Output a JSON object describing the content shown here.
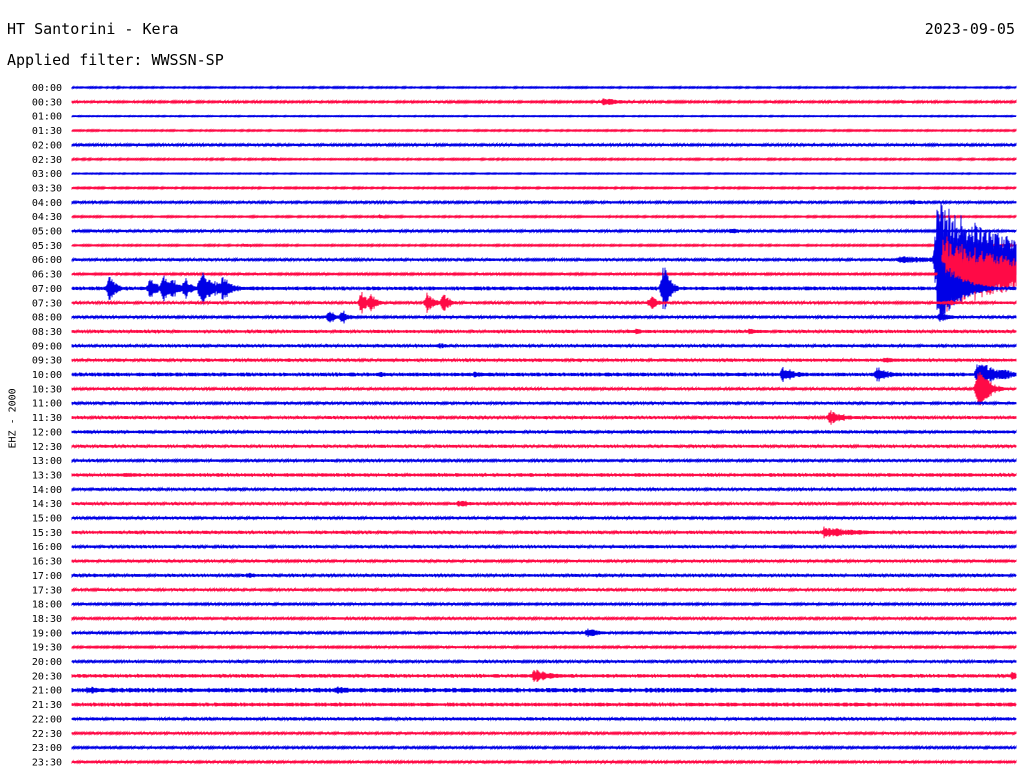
{
  "header": {
    "station": "HT Santorini - Kera",
    "date": "2023-09-05",
    "filter_prefix": "Applied filter:",
    "filter_name": "WWSSN-SP",
    "channel": "EHZ - 2000"
  },
  "colors": {
    "even_trace": "#0000e6",
    "odd_trace": "#ff0a46",
    "tick_label": "#000000"
  },
  "chart_data": {
    "type": "line",
    "title": "HT Santorini - Kera",
    "subtitle": "Applied filter: WWSSN-SP",
    "ylabel": "EHZ - 2000",
    "xlabel": "",
    "rows": [
      "00:00",
      "00:30",
      "01:00",
      "01:30",
      "02:00",
      "02:30",
      "03:00",
      "03:30",
      "04:00",
      "04:30",
      "05:00",
      "05:30",
      "06:00",
      "06:30",
      "07:00",
      "07:30",
      "08:00",
      "08:30",
      "09:00",
      "09:30",
      "10:00",
      "10:30",
      "11:00",
      "11:30",
      "12:00",
      "12:30",
      "13:00",
      "13:30",
      "14:00",
      "14:30",
      "15:00",
      "15:30",
      "16:00",
      "16:30",
      "17:00",
      "17:30",
      "18:00",
      "18:30",
      "19:00",
      "19:30",
      "20:00",
      "20:30",
      "21:00",
      "21:30",
      "22:00",
      "22:30",
      "23:00",
      "23:30"
    ],
    "x_units": "minutes into row",
    "xlim": [
      0,
      30
    ],
    "noise_level": [
      0.8,
      1.1,
      0.6,
      0.8,
      1.3,
      0.9,
      0.6,
      0.9,
      1.2,
      0.9,
      1.3,
      0.9,
      1.3,
      1.1,
      1.9,
      1.3,
      1.3,
      1.6,
      1.5,
      1.6,
      1.9,
      1.3,
      1.4,
      1.5,
      1.6,
      1.5,
      1.3,
      1.8,
      1.4,
      1.4,
      1.4,
      1.6,
      1.5,
      1.4,
      1.5,
      1.3,
      1.2,
      1.3,
      1.3,
      1.1,
      1.4,
      1.8,
      2.4,
      2.0,
      1.6,
      1.2,
      1.2,
      1.2
    ],
    "events": [
      {
        "row": 1,
        "t": 16.9,
        "amp": 4,
        "dur": 0.8
      },
      {
        "row": 1,
        "t": 26.4,
        "amp": 2,
        "dur": 0.3
      },
      {
        "row": 5,
        "t": 6.4,
        "amp": 2,
        "dur": 0.3
      },
      {
        "row": 8,
        "t": 26.7,
        "amp": 3,
        "dur": 0.5
      },
      {
        "row": 9,
        "t": 9.8,
        "amp": 2,
        "dur": 0.4
      },
      {
        "row": 10,
        "t": 20.9,
        "amp": 3,
        "dur": 0.6
      },
      {
        "row": 11,
        "t": 5.5,
        "amp": 2,
        "dur": 0.4
      },
      {
        "row": 12,
        "t": 13.3,
        "amp": 2,
        "dur": 0.3
      },
      {
        "row": 12,
        "t": 26.3,
        "amp": 4,
        "dur": 1.6
      },
      {
        "row": 12,
        "t": 27.5,
        "amp": 60,
        "dur": 2.5
      },
      {
        "row": 13,
        "t": 27.7,
        "amp": 40,
        "dur": 2.5
      },
      {
        "row": 14,
        "t": 1.2,
        "amp": 16,
        "dur": 0.2
      },
      {
        "row": 14,
        "t": 2.5,
        "amp": 14,
        "dur": 0.2
      },
      {
        "row": 14,
        "t": 2.9,
        "amp": 16,
        "dur": 0.2
      },
      {
        "row": 14,
        "t": 3.2,
        "amp": 12,
        "dur": 0.2
      },
      {
        "row": 14,
        "t": 3.6,
        "amp": 12,
        "dur": 0.2
      },
      {
        "row": 14,
        "t": 4.1,
        "amp": 18,
        "dur": 0.5
      },
      {
        "row": 14,
        "t": 4.8,
        "amp": 14,
        "dur": 0.3
      },
      {
        "row": 14,
        "t": 18.8,
        "amp": 28,
        "dur": 0.2
      },
      {
        "row": 14,
        "t": 27.6,
        "amp": 38,
        "dur": 0.6
      },
      {
        "row": 15,
        "t": 9.2,
        "amp": 12,
        "dur": 0.2
      },
      {
        "row": 15,
        "t": 9.5,
        "amp": 10,
        "dur": 0.2
      },
      {
        "row": 15,
        "t": 11.3,
        "amp": 12,
        "dur": 0.2
      },
      {
        "row": 15,
        "t": 11.8,
        "amp": 12,
        "dur": 0.2
      },
      {
        "row": 15,
        "t": 18.4,
        "amp": 8,
        "dur": 0.2
      },
      {
        "row": 15,
        "t": 27.9,
        "amp": 3,
        "dur": 0.4
      },
      {
        "row": 16,
        "t": 8.2,
        "amp": 8,
        "dur": 0.2
      },
      {
        "row": 16,
        "t": 8.6,
        "amp": 8,
        "dur": 0.2
      },
      {
        "row": 16,
        "t": 27.6,
        "amp": 6,
        "dur": 0.3
      },
      {
        "row": 17,
        "t": 17.9,
        "amp": 3,
        "dur": 0.6
      },
      {
        "row": 17,
        "t": 21.5,
        "amp": 3,
        "dur": 0.6
      },
      {
        "row": 18,
        "t": 11.7,
        "amp": 3,
        "dur": 0.3
      },
      {
        "row": 19,
        "t": 6.9,
        "amp": 2,
        "dur": 0.5
      },
      {
        "row": 19,
        "t": 25.8,
        "amp": 3,
        "dur": 0.6
      },
      {
        "row": 20,
        "t": 9.8,
        "amp": 3,
        "dur": 0.3
      },
      {
        "row": 20,
        "t": 12.8,
        "amp": 3,
        "dur": 0.5
      },
      {
        "row": 20,
        "t": 22.6,
        "amp": 8,
        "dur": 0.5
      },
      {
        "row": 20,
        "t": 25.6,
        "amp": 8,
        "dur": 0.4
      },
      {
        "row": 20,
        "t": 28.8,
        "amp": 14,
        "dur": 0.8
      },
      {
        "row": 21,
        "t": 28.8,
        "amp": 28,
        "dur": 0.3
      },
      {
        "row": 23,
        "t": 5.8,
        "amp": 2,
        "dur": 0.3
      },
      {
        "row": 23,
        "t": 24.1,
        "amp": 8,
        "dur": 0.5
      },
      {
        "row": 25,
        "t": 13.6,
        "amp": 2,
        "dur": 0.6
      },
      {
        "row": 27,
        "t": 1.7,
        "amp": 3,
        "dur": 0.5
      },
      {
        "row": 27,
        "t": 11.9,
        "amp": 2,
        "dur": 0.3
      },
      {
        "row": 29,
        "t": 12.3,
        "amp": 4,
        "dur": 0.7
      },
      {
        "row": 31,
        "t": 23.9,
        "amp": 6,
        "dur": 1.2
      },
      {
        "row": 32,
        "t": 18.3,
        "amp": 2,
        "dur": 0.8
      },
      {
        "row": 34,
        "t": 0.7,
        "amp": 2,
        "dur": 0.6
      },
      {
        "row": 34,
        "t": 5.6,
        "amp": 3,
        "dur": 0.5
      },
      {
        "row": 37,
        "t": 8.3,
        "amp": 2,
        "dur": 0.3
      },
      {
        "row": 38,
        "t": 16.4,
        "amp": 5,
        "dur": 0.4
      },
      {
        "row": 41,
        "t": 14.7,
        "amp": 7,
        "dur": 0.6
      },
      {
        "row": 41,
        "t": 29.9,
        "amp": 5,
        "dur": 0.3
      },
      {
        "row": 42,
        "t": 0.5,
        "amp": 4,
        "dur": 0.8
      },
      {
        "row": 42,
        "t": 8.4,
        "amp": 4,
        "dur": 0.8
      },
      {
        "row": 47,
        "t": 13.0,
        "amp": 2,
        "dur": 0.3
      }
    ],
    "grid": false
  }
}
